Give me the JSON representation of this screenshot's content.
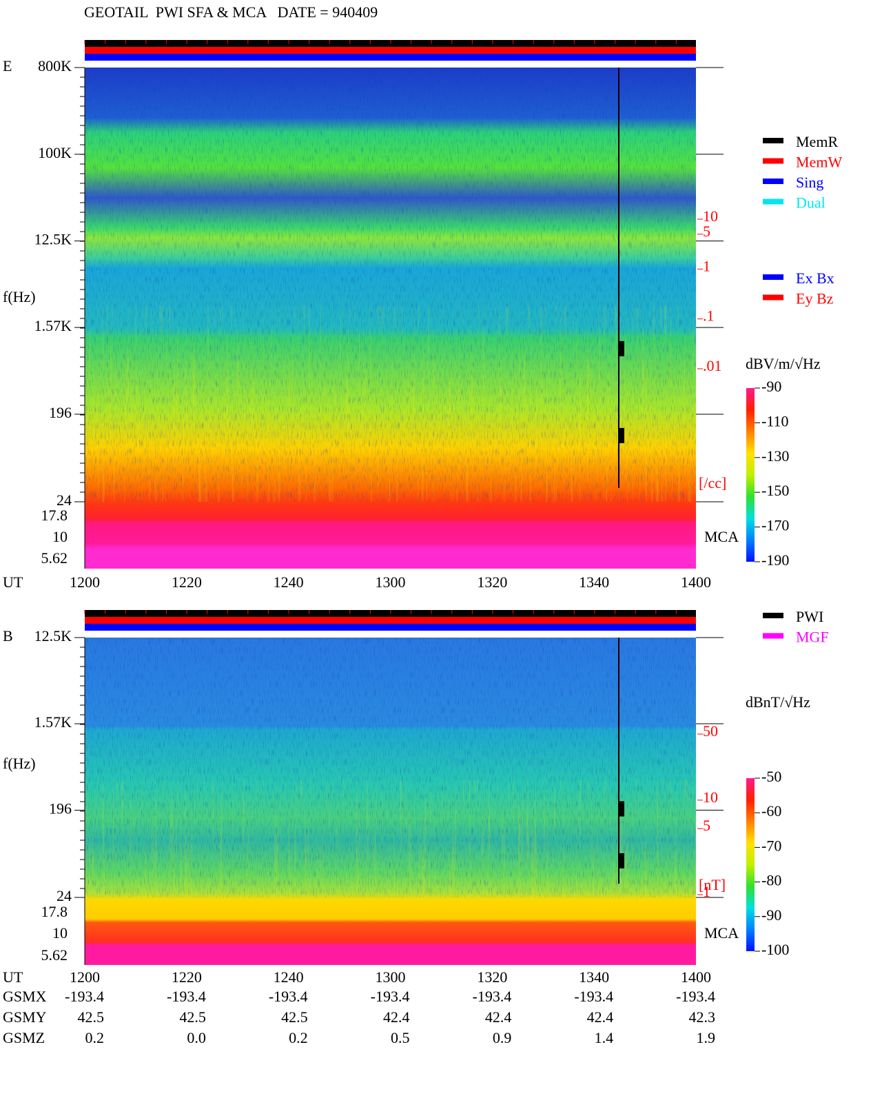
{
  "title": "GEOTAIL  PWI SFA & MCA   DATE = 940409",
  "chart_data": [
    {
      "type": "spectrogram",
      "panel_label": "E",
      "ylabel": "f(Hz)",
      "xlabel": "UT",
      "log_y": true,
      "ylim": [
        24,
        800000
      ],
      "yticks": [
        {
          "value": 800000,
          "label": "800K"
        },
        {
          "value": 100000,
          "label": "100K"
        },
        {
          "value": 12500,
          "label": "12.5K"
        },
        {
          "value": 1570,
          "label": "1.57K"
        },
        196,
        24
      ],
      "mca_channels": [
        "17.8",
        "10",
        "5.62"
      ],
      "mca_label": "MCA",
      "xticks": [
        "1200",
        "1220",
        "1240",
        "1300",
        "1320",
        "1340",
        "1400"
      ],
      "density_axis": {
        "color": "#ff0000",
        "unit_label": "[/cc]",
        "lim": [
          0.01,
          10
        ],
        "ticks": [
          10,
          5,
          1,
          {
            "value": 0.1,
            "label": ".1"
          },
          {
            "value": 0.01,
            "label": ".01"
          }
        ]
      },
      "colorbar": {
        "label": "dBV/m/√Hz",
        "lim": [
          -190,
          -90
        ],
        "ticks": [
          -90,
          -110,
          -130,
          -150,
          -170,
          -190
        ]
      },
      "legend": [
        {
          "name": "MemR",
          "color": "#000000"
        },
        {
          "name": "MemW",
          "color": "#ff0000"
        },
        {
          "name": "Sing",
          "color": "#0000ff"
        },
        {
          "name": "Dual",
          "color": "#00e5ee"
        }
      ],
      "legend2": [
        {
          "name": "Ex Bx",
          "color": "#0000ff"
        },
        {
          "name": "Ey Bz",
          "color": "#ff0000"
        }
      ]
    },
    {
      "type": "spectrogram",
      "panel_label": "B",
      "ylabel": "f(Hz)",
      "xlabel": "UT",
      "log_y": true,
      "ylim": [
        24,
        12500
      ],
      "yticks": [
        {
          "value": 12500,
          "label": "12.5K"
        },
        {
          "value": 1570,
          "label": "1.57K"
        },
        196,
        24
      ],
      "mca_channels": [
        "17.8",
        "10",
        "5.62"
      ],
      "mca_label": "MCA",
      "xticks": [
        "1200",
        "1220",
        "1240",
        "1300",
        "1320",
        "1340",
        "1400"
      ],
      "density_axis": {
        "color": "#ff0000",
        "unit_label": "[nT]",
        "lim": [
          1,
          50
        ],
        "ticks": [
          50,
          10,
          5,
          1
        ]
      },
      "colorbar": {
        "label": "dBnT/√Hz",
        "lim": [
          -100,
          -50
        ],
        "ticks": [
          -50,
          -60,
          -70,
          -80,
          -90,
          -100
        ]
      },
      "legend": [
        {
          "name": "PWI",
          "color": "#000000"
        },
        {
          "name": "MGF",
          "color": "#ff00ff"
        }
      ]
    }
  ],
  "orbit": {
    "rows": [
      {
        "name": "GSMX",
        "values": [
          "-193.4",
          "-193.4",
          "-193.4",
          "-193.4",
          "-193.4",
          "-193.4",
          "-193.4"
        ]
      },
      {
        "name": "GSMY",
        "values": [
          "42.5",
          "42.5",
          "42.5",
          "42.4",
          "42.4",
          "42.4",
          "42.3"
        ]
      },
      {
        "name": "GSMZ",
        "values": [
          "0.2",
          "0.0",
          "0.2",
          "0.5",
          "0.9",
          "1.4",
          "1.9"
        ]
      }
    ]
  }
}
